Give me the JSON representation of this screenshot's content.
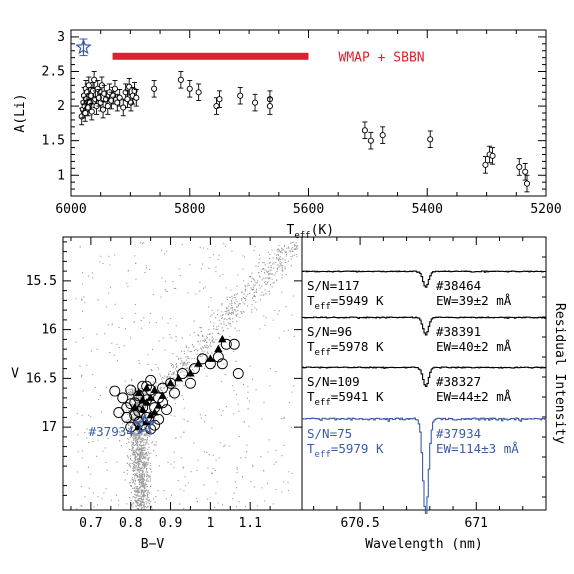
{
  "colors": {
    "star_blue": "#3a5ca8",
    "wmap_red": "#e02030",
    "field_gray": "#9a9a9a",
    "ink": "#000000"
  },
  "chart_data": [
    {
      "type": "scatter",
      "ylabel": "A(Li)",
      "xlabel_main": "T",
      "xlabel_sub": "eff",
      "xlabel_unit": "(K)",
      "xlim": [
        6000,
        5200
      ],
      "ylim": [
        0.7,
        3.1
      ],
      "x_ticks": [
        6000,
        5800,
        5600,
        5400,
        5200
      ],
      "y_ticks": [
        1,
        1.5,
        2,
        2.5,
        3
      ],
      "x_tick_labels": [
        "6000",
        "5800",
        "5600",
        "5400",
        "5200"
      ],
      "y_tick_labels": [
        "1",
        "1.5",
        "2",
        "2.5",
        "3"
      ],
      "wmap_sbbn": {
        "label": "WMAP + SBBN",
        "x_range": [
          5930,
          5600
        ],
        "y": 2.72
      },
      "star_marker": {
        "x": 5979,
        "y": 2.85,
        "err": 0.12
      },
      "points": [
        {
          "x": 5982,
          "y": 1.85,
          "err": 0.12
        },
        {
          "x": 5980,
          "y": 1.95,
          "err": 0.12
        },
        {
          "x": 5979,
          "y": 2.05,
          "err": 0.12
        },
        {
          "x": 5978,
          "y": 2.15,
          "err": 0.12
        },
        {
          "x": 5977,
          "y": 2.0,
          "err": 0.12
        },
        {
          "x": 5976,
          "y": 1.9,
          "err": 0.12
        },
        {
          "x": 5975,
          "y": 2.25,
          "err": 0.12
        },
        {
          "x": 5974,
          "y": 2.1,
          "err": 0.12
        },
        {
          "x": 5973,
          "y": 2.2,
          "err": 0.12
        },
        {
          "x": 5971,
          "y": 1.98,
          "err": 0.12
        },
        {
          "x": 5970,
          "y": 2.3,
          "err": 0.12
        },
        {
          "x": 5968,
          "y": 2.05,
          "err": 0.12
        },
        {
          "x": 5966,
          "y": 2.15,
          "err": 0.12
        },
        {
          "x": 5965,
          "y": 1.92,
          "err": 0.12
        },
        {
          "x": 5963,
          "y": 2.22,
          "err": 0.12
        },
        {
          "x": 5961,
          "y": 2.38,
          "err": 0.12
        },
        {
          "x": 5959,
          "y": 2.1,
          "err": 0.12
        },
        {
          "x": 5957,
          "y": 2.0,
          "err": 0.12
        },
        {
          "x": 5955,
          "y": 2.25,
          "err": 0.12
        },
        {
          "x": 5953,
          "y": 2.12,
          "err": 0.12
        },
        {
          "x": 5950,
          "y": 2.05,
          "err": 0.12
        },
        {
          "x": 5948,
          "y": 2.3,
          "err": 0.12
        },
        {
          "x": 5946,
          "y": 1.95,
          "err": 0.12
        },
        {
          "x": 5944,
          "y": 2.18,
          "err": 0.12
        },
        {
          "x": 5941,
          "y": 2.1,
          "err": 0.12
        },
        {
          "x": 5938,
          "y": 2.0,
          "err": 0.12
        },
        {
          "x": 5935,
          "y": 2.2,
          "err": 0.12
        },
        {
          "x": 5932,
          "y": 2.08,
          "err": 0.12
        },
        {
          "x": 5929,
          "y": 2.15,
          "err": 0.12
        },
        {
          "x": 5926,
          "y": 2.25,
          "err": 0.12
        },
        {
          "x": 5922,
          "y": 2.05,
          "err": 0.12
        },
        {
          "x": 5918,
          "y": 2.12,
          "err": 0.12
        },
        {
          "x": 5912,
          "y": 1.98,
          "err": 0.12
        },
        {
          "x": 5908,
          "y": 2.2,
          "err": 0.12
        },
        {
          "x": 5905,
          "y": 2.1,
          "err": 0.12
        },
        {
          "x": 5902,
          "y": 2.28,
          "err": 0.12
        },
        {
          "x": 5899,
          "y": 2.05,
          "err": 0.12
        },
        {
          "x": 5896,
          "y": 2.15,
          "err": 0.12
        },
        {
          "x": 5893,
          "y": 2.22,
          "err": 0.12
        },
        {
          "x": 5890,
          "y": 2.12,
          "err": 0.12
        },
        {
          "x": 5860,
          "y": 2.25,
          "err": 0.12
        },
        {
          "x": 5815,
          "y": 2.38,
          "err": 0.12
        },
        {
          "x": 5800,
          "y": 2.25,
          "err": 0.12
        },
        {
          "x": 5785,
          "y": 2.2,
          "err": 0.12
        },
        {
          "x": 5755,
          "y": 2.0,
          "err": 0.12
        },
        {
          "x": 5750,
          "y": 2.1,
          "err": 0.12
        },
        {
          "x": 5715,
          "y": 2.15,
          "err": 0.12
        },
        {
          "x": 5690,
          "y": 2.05,
          "err": 0.12
        },
        {
          "x": 5665,
          "y": 2.1,
          "err": 0.12
        },
        {
          "x": 5665,
          "y": 2.0,
          "err": 0.12
        },
        {
          "x": 5505,
          "y": 1.65,
          "err": 0.12
        },
        {
          "x": 5495,
          "y": 1.5,
          "err": 0.12
        },
        {
          "x": 5475,
          "y": 1.58,
          "err": 0.12
        },
        {
          "x": 5395,
          "y": 1.52,
          "err": 0.12
        },
        {
          "x": 5302,
          "y": 1.15,
          "err": 0.12
        },
        {
          "x": 5295,
          "y": 1.3,
          "err": 0.12
        },
        {
          "x": 5290,
          "y": 1.28,
          "err": 0.12
        },
        {
          "x": 5245,
          "y": 1.12,
          "err": 0.12
        },
        {
          "x": 5235,
          "y": 1.05,
          "err": 0.12
        },
        {
          "x": 5232,
          "y": 0.88,
          "err": 0.12
        }
      ]
    },
    {
      "type": "scatter",
      "xlabel": "B−V",
      "ylabel": "V",
      "xlim": [
        0.63,
        1.23
      ],
      "ylim": [
        17.85,
        15.05
      ],
      "x_ticks": [
        0.7,
        0.8,
        0.9,
        1.0,
        1.1
      ],
      "x_tick_labels": [
        "0.7",
        "0.8",
        "0.9",
        "1",
        "1.1"
      ],
      "y_ticks": [
        15.5,
        16,
        16.5,
        17
      ],
      "y_tick_labels": [
        "15.5",
        "16",
        "16.5",
        "17"
      ],
      "highlight_label": "#37934",
      "highlight_star": {
        "x": 0.835,
        "y": 16.98
      },
      "circles": [
        [
          0.76,
          16.63
        ],
        [
          0.78,
          16.7
        ],
        [
          0.79,
          16.8
        ],
        [
          0.8,
          16.62
        ],
        [
          0.81,
          16.75
        ],
        [
          0.81,
          16.88
        ],
        [
          0.82,
          16.68
        ],
        [
          0.82,
          16.95
        ],
        [
          0.83,
          16.58
        ],
        [
          0.83,
          16.8
        ],
        [
          0.84,
          16.72
        ],
        [
          0.84,
          16.9
        ],
        [
          0.85,
          16.62
        ],
        [
          0.85,
          17.02
        ],
        [
          0.86,
          16.8
        ],
        [
          0.87,
          16.7
        ],
        [
          0.87,
          16.92
        ],
        [
          0.88,
          16.6
        ],
        [
          0.89,
          16.82
        ],
        [
          0.9,
          16.55
        ],
        [
          0.79,
          16.9
        ],
        [
          0.8,
          17.0
        ],
        [
          0.77,
          16.85
        ],
        [
          0.86,
          16.98
        ],
        [
          0.91,
          16.65
        ],
        [
          0.93,
          16.45
        ],
        [
          0.96,
          16.4
        ],
        [
          0.98,
          16.3
        ],
        [
          1.0,
          16.35
        ],
        [
          1.02,
          16.28
        ],
        [
          1.04,
          16.15
        ],
        [
          1.06,
          16.15
        ],
        [
          1.03,
          16.35
        ],
        [
          1.07,
          16.45
        ],
        [
          0.95,
          16.55
        ],
        [
          0.84,
          16.58
        ],
        [
          0.82,
          16.84
        ],
        [
          0.88,
          16.75
        ],
        [
          0.85,
          16.52
        ],
        [
          0.8,
          16.76
        ]
      ],
      "triangles": [
        [
          0.82,
          16.65
        ],
        [
          0.83,
          16.82
        ],
        [
          0.84,
          16.75
        ],
        [
          0.84,
          16.95
        ],
        [
          0.85,
          16.7
        ],
        [
          0.85,
          16.88
        ],
        [
          0.86,
          16.62
        ],
        [
          0.83,
          16.72
        ],
        [
          0.81,
          16.8
        ],
        [
          0.86,
          16.85
        ],
        [
          0.87,
          16.78
        ],
        [
          0.88,
          16.68
        ],
        [
          0.9,
          16.55
        ],
        [
          0.92,
          16.5
        ],
        [
          0.95,
          16.45
        ],
        [
          0.97,
          16.35
        ],
        [
          1.0,
          16.3
        ],
        [
          1.02,
          16.2
        ],
        [
          1.03,
          16.1
        ],
        [
          0.84,
          16.6
        ],
        [
          0.82,
          17.0
        ]
      ]
    },
    {
      "type": "line",
      "xlabel": "Wavelength (nm)",
      "ylabel": "Residual Intensity",
      "x_ticks": [
        670.5,
        671
      ],
      "x_tick_labels": [
        "670.5",
        "671"
      ],
      "spectra": [
        {
          "id": "#38464",
          "sn": "S/N=117",
          "teff_value": "=5949 K",
          "ew": "EW=39±2 mÅ",
          "depth": 0.35,
          "noise": 0.12,
          "color": "#000000"
        },
        {
          "id": "#38391",
          "sn": "S/N=96",
          "teff_value": "=5978 K",
          "ew": "EW=40±2 mÅ",
          "depth": 0.38,
          "noise": 0.14,
          "color": "#000000"
        },
        {
          "id": "#38327",
          "sn": "S/N=109",
          "teff_value": "=5941 K",
          "ew": "EW=44±2 mÅ",
          "depth": 0.42,
          "noise": 0.13,
          "color": "#000000"
        },
        {
          "id": "#37934",
          "sn": "S/N=75",
          "teff_value": "=5979 K",
          "ew": "EW=114±3 mÅ",
          "depth": 1.0,
          "noise": 0.15,
          "color": "#3a5ca8"
        }
      ],
      "teff_main": "T",
      "teff_sub": "eff"
    }
  ]
}
